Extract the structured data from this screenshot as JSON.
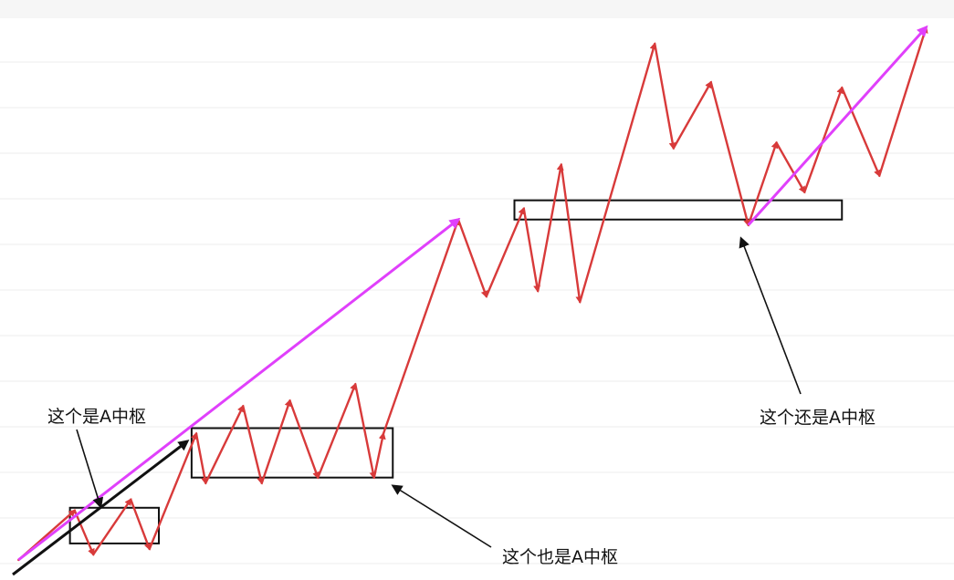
{
  "annotations": {
    "label_1": "这个是A中枢",
    "label_2": "这个也是A中枢",
    "label_3": "这个还是A中枢"
  },
  "colors": {
    "zigzag": "#d83a3a",
    "trend": "#e040fb",
    "box": "#111111",
    "pointer": "#111111",
    "grid": "#ececec"
  },
  "chart_data": {
    "type": "line",
    "title": "",
    "xlabel": "",
    "ylabel": "",
    "xlim": [
      0,
      100
    ],
    "ylim": [
      0,
      100
    ],
    "series": [
      {
        "name": "price-zigzag",
        "x": [
          1,
          7,
          9,
          13,
          15,
          20,
          21,
          25,
          27,
          30,
          33,
          37,
          39,
          40,
          48,
          51,
          55,
          56.5,
          59,
          61,
          69,
          71,
          75,
          79,
          82,
          85,
          89,
          93,
          98
        ],
        "y": [
          1,
          10,
          2,
          12,
          3,
          24,
          15,
          29,
          15,
          30,
          16,
          33,
          16,
          24,
          63,
          49,
          65,
          50,
          73,
          48,
          95,
          76,
          88,
          62,
          77,
          68,
          87,
          71,
          98
        ]
      }
    ],
    "trend_lines": [
      {
        "name": "rising-trend-1",
        "from": [
          1,
          1
        ],
        "to": [
          48,
          63
        ]
      },
      {
        "name": "rising-trend-2",
        "from": [
          79,
          62
        ],
        "to": [
          98,
          98
        ]
      }
    ],
    "centers": [
      {
        "name": "center-box-1",
        "x0": 6.5,
        "x1": 16,
        "y0": 4,
        "y1": 10.5
      },
      {
        "name": "center-box-2",
        "x0": 19.5,
        "x1": 41,
        "y0": 16,
        "y1": 25
      },
      {
        "name": "center-box-3",
        "x0": 54,
        "x1": 89,
        "y0": 63,
        "y1": 66.5
      }
    ]
  }
}
